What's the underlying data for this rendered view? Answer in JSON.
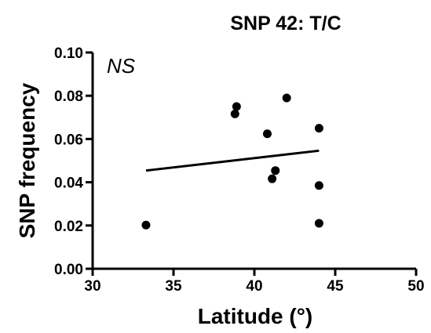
{
  "chart_data": {
    "type": "scatter",
    "title": "SNP 42: T/C",
    "annotation": "NS",
    "xlabel": "Latitude (°)",
    "ylabel": "SNP frequency",
    "xlim": [
      30,
      50
    ],
    "ylim": [
      0.0,
      0.1
    ],
    "xticks": [
      30,
      35,
      40,
      45,
      50
    ],
    "xtick_labels": [
      "30",
      "35",
      "40",
      "45",
      "50"
    ],
    "yticks": [
      0.0,
      0.02,
      0.04,
      0.06,
      0.08,
      0.1
    ],
    "ytick_labels": [
      "0.00",
      "0.02",
      "0.04",
      "0.06",
      "0.08",
      "0.10"
    ],
    "grid": false,
    "points": [
      {
        "x": 33.3,
        "y": 0.0202
      },
      {
        "x": 38.8,
        "y": 0.0716
      },
      {
        "x": 38.9,
        "y": 0.075
      },
      {
        "x": 40.8,
        "y": 0.0624
      },
      {
        "x": 41.1,
        "y": 0.0416
      },
      {
        "x": 41.3,
        "y": 0.0454
      },
      {
        "x": 42.0,
        "y": 0.079
      },
      {
        "x": 44.0,
        "y": 0.065
      },
      {
        "x": 44.0,
        "y": 0.0385
      },
      {
        "x": 44.0,
        "y": 0.021
      }
    ],
    "trendline": {
      "x": [
        33.3,
        44.0
      ],
      "y": [
        0.0454,
        0.0546
      ]
    }
  }
}
